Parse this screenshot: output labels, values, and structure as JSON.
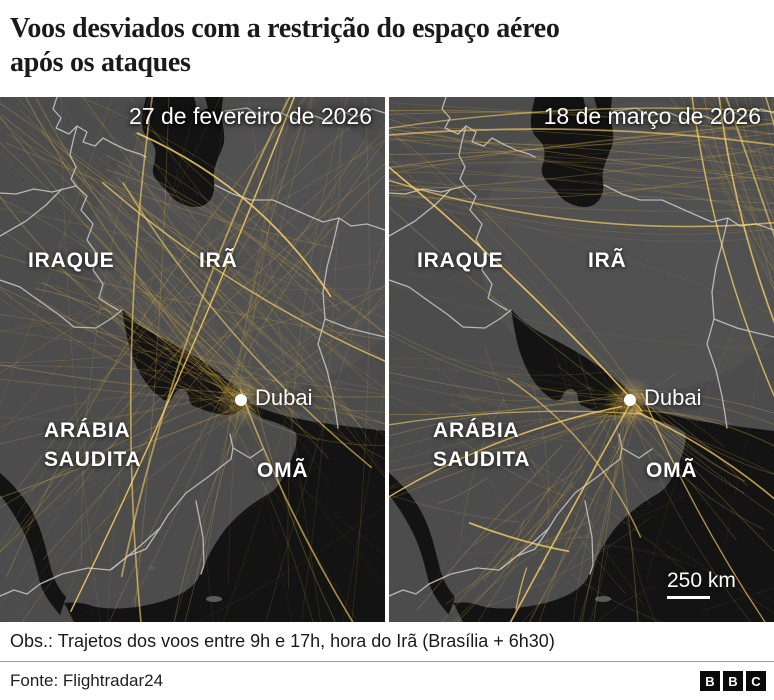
{
  "title_lines": [
    "Voos desviados com a restrição do espaço aéreo",
    "após os ataques"
  ],
  "maps": [
    {
      "date": "27 de fevereiro de 2026",
      "traffic_pattern": "dense-flights-over-iran-and-gulf"
    },
    {
      "date": "18 de março de 2026",
      "traffic_pattern": "flights-rerouted-around-iran-airspace",
      "scale": "250 km"
    }
  ],
  "map_labels": {
    "iraq": "IRAQUE",
    "iran": "IRÃ",
    "saudi": [
      "ARÁBIA",
      "SAUDITA"
    ],
    "oman": "OMÃ",
    "city": "Dubai"
  },
  "note": "Obs.: Trajetos dos voos entre 9h e 17h, hora do Irã (Brasília + 6h30)",
  "source": "Fonte: Flightradar24",
  "logo": [
    "B",
    "B",
    "C"
  ],
  "colors": {
    "flight_line": "#e2b647",
    "flight_bright": "#ffd566",
    "land": "#4c4c4c",
    "sea": "#131313",
    "border": "#bdbdbd",
    "label": "#ffffff"
  }
}
